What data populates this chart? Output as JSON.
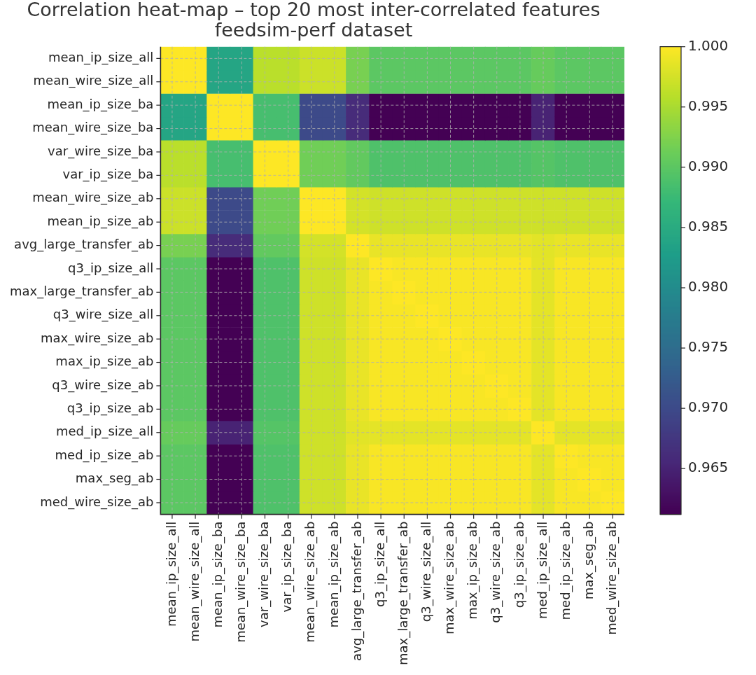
{
  "chart_data": {
    "type": "heatmap",
    "title": "Correlation heat-map – top 20 most inter-correlated features\nfeedsim-perf dataset",
    "categories": [
      "mean_ip_size_all",
      "mean_wire_size_all",
      "mean_ip_size_ba",
      "mean_wire_size_ba",
      "var_wire_size_ba",
      "var_ip_size_ba",
      "mean_wire_size_ab",
      "mean_ip_size_ab",
      "avg_large_transfer_ab",
      "q3_ip_size_all",
      "max_large_transfer_ab",
      "q3_wire_size_all",
      "max_wire_size_ab",
      "max_ip_size_ab",
      "q3_wire_size_ab",
      "q3_ip_size_ab",
      "med_ip_size_all",
      "med_ip_size_ab",
      "max_seg_ab",
      "med_wire_size_ab"
    ],
    "y_categories": [
      "mean_ip_size_all",
      "mean_wire_size_all",
      "mean_ip_size_ba",
      "mean_wire_size_ba",
      "var_wire_size_ba",
      "var_ip_size_ba",
      "mean_wire_size_ab",
      "mean_ip_size_ab",
      "avg_large_transfer_ab",
      "q3_ip_size_all",
      "max_large_transfer_ab",
      "q3_wire_size_all",
      "max_wire_size_ab",
      "max_ip_size_ab",
      "q3_wire_size_ab",
      "q3_ip_size_ab",
      "med_ip_size_all",
      "med_ip_size_ab",
      "max_seg_ab",
      "med_wire_size_ab"
    ],
    "cells": [
      [
        1,
        1,
        0.984,
        0.984,
        0.996,
        0.996,
        0.997,
        0.997,
        0.992,
        0.99,
        0.99,
        0.99,
        0.99,
        0.99,
        0.99,
        0.99,
        0.9908,
        0.99,
        0.99,
        0.99
      ],
      [
        1,
        1,
        0.984,
        0.984,
        0.996,
        0.996,
        0.997,
        0.997,
        0.992,
        0.99,
        0.99,
        0.99,
        0.99,
        0.99,
        0.99,
        0.99,
        0.9908,
        0.99,
        0.99,
        0.99
      ],
      [
        0.984,
        0.984,
        1,
        1,
        0.9884,
        0.9884,
        0.97,
        0.97,
        0.966,
        0.9612,
        0.9612,
        0.9612,
        0.9612,
        0.9612,
        0.9612,
        0.9612,
        0.965,
        0.9612,
        0.9612,
        0.9612
      ],
      [
        0.984,
        0.984,
        1,
        1,
        0.9884,
        0.9884,
        0.97,
        0.97,
        0.966,
        0.9612,
        0.9612,
        0.9612,
        0.9612,
        0.9612,
        0.9612,
        0.9612,
        0.965,
        0.9612,
        0.9612,
        0.9612
      ],
      [
        0.996,
        0.996,
        0.9884,
        0.9884,
        1,
        1,
        0.9915,
        0.9915,
        0.9905,
        0.989,
        0.989,
        0.989,
        0.989,
        0.989,
        0.989,
        0.989,
        0.9895,
        0.989,
        0.989,
        0.989
      ],
      [
        0.996,
        0.996,
        0.9884,
        0.9884,
        1,
        1,
        0.9915,
        0.9915,
        0.9905,
        0.989,
        0.989,
        0.989,
        0.989,
        0.989,
        0.989,
        0.989,
        0.9895,
        0.989,
        0.989,
        0.989
      ],
      [
        0.997,
        0.997,
        0.97,
        0.97,
        0.9915,
        0.9915,
        1,
        1,
        0.9975,
        0.9972,
        0.9972,
        0.9972,
        0.9972,
        0.9972,
        0.9972,
        0.9972,
        0.9972,
        0.9972,
        0.9972,
        0.9972
      ],
      [
        0.997,
        0.997,
        0.97,
        0.97,
        0.9915,
        0.9915,
        1,
        1,
        0.9975,
        0.9972,
        0.9972,
        0.9972,
        0.9972,
        0.9972,
        0.9972,
        0.9972,
        0.9972,
        0.9972,
        0.9972,
        0.9972
      ],
      [
        0.992,
        0.992,
        0.966,
        0.966,
        0.9905,
        0.9905,
        0.9975,
        0.9975,
        1,
        0.9988,
        0.9988,
        0.9988,
        0.9988,
        0.9988,
        0.9988,
        0.9988,
        0.9984,
        0.9988,
        0.9988,
        0.9988
      ],
      [
        0.99,
        0.99,
        0.9612,
        0.9612,
        0.989,
        0.989,
        0.9972,
        0.9972,
        0.9988,
        1,
        0.9997,
        0.9997,
        0.9997,
        0.9997,
        0.9997,
        0.9997,
        0.9985,
        0.9997,
        0.9997,
        0.9997
      ],
      [
        0.99,
        0.99,
        0.9612,
        0.9612,
        0.989,
        0.989,
        0.9972,
        0.9972,
        0.9988,
        0.9997,
        1,
        0.9997,
        0.9997,
        0.9997,
        0.9997,
        0.9997,
        0.9985,
        0.9997,
        0.9997,
        0.9997
      ],
      [
        0.99,
        0.99,
        0.9612,
        0.9612,
        0.989,
        0.989,
        0.9972,
        0.9972,
        0.9988,
        0.9997,
        0.9997,
        1,
        0.9997,
        0.9997,
        0.9997,
        0.9997,
        0.9985,
        0.9997,
        0.9997,
        0.9997
      ],
      [
        0.99,
        0.99,
        0.9612,
        0.9612,
        0.989,
        0.989,
        0.9972,
        0.9972,
        0.9988,
        0.9997,
        0.9997,
        0.9997,
        1,
        0.9997,
        0.9997,
        0.9997,
        0.9985,
        0.9997,
        0.9997,
        0.9997
      ],
      [
        0.99,
        0.99,
        0.9612,
        0.9612,
        0.989,
        0.989,
        0.9972,
        0.9972,
        0.9988,
        0.9997,
        0.9997,
        0.9997,
        0.9997,
        1,
        0.9997,
        0.9997,
        0.9985,
        0.9997,
        0.9997,
        0.9997
      ],
      [
        0.99,
        0.99,
        0.9612,
        0.9612,
        0.989,
        0.989,
        0.9972,
        0.9972,
        0.9988,
        0.9997,
        0.9997,
        0.9997,
        0.9997,
        0.9997,
        1,
        0.9997,
        0.9985,
        0.9997,
        0.9997,
        0.9997
      ],
      [
        0.99,
        0.99,
        0.9612,
        0.9612,
        0.989,
        0.989,
        0.9972,
        0.9972,
        0.9988,
        0.9997,
        0.9997,
        0.9997,
        0.9997,
        0.9997,
        0.9997,
        1,
        0.9985,
        0.9997,
        0.9997,
        0.9997
      ],
      [
        0.9908,
        0.9908,
        0.965,
        0.965,
        0.9895,
        0.9895,
        0.9972,
        0.9972,
        0.9984,
        0.9985,
        0.9985,
        0.9985,
        0.9985,
        0.9985,
        0.9985,
        0.9985,
        1,
        0.9985,
        0.9985,
        0.9985
      ],
      [
        0.99,
        0.99,
        0.9612,
        0.9612,
        0.989,
        0.989,
        0.9972,
        0.9972,
        0.9988,
        0.9997,
        0.9997,
        0.9997,
        0.9997,
        0.9997,
        0.9997,
        0.9997,
        0.9985,
        1,
        0.9997,
        0.9997
      ],
      [
        0.99,
        0.99,
        0.9612,
        0.9612,
        0.989,
        0.989,
        0.9972,
        0.9972,
        0.9988,
        0.9997,
        0.9997,
        0.9997,
        0.9997,
        0.9997,
        0.9997,
        0.9997,
        0.9985,
        0.9997,
        1,
        0.9997
      ],
      [
        0.99,
        0.99,
        0.9612,
        0.9612,
        0.989,
        0.989,
        0.9972,
        0.9972,
        0.9988,
        0.9997,
        0.9997,
        0.9997,
        0.9997,
        0.9997,
        0.9997,
        0.9997,
        0.9985,
        0.9997,
        0.9997,
        1
      ]
    ],
    "clim": [
      0.9612,
      1
    ],
    "cticks": [
      {
        "value": 0.965,
        "label": "0.965"
      },
      {
        "value": 0.97,
        "label": "0.970"
      },
      {
        "value": 0.975,
        "label": "0.975"
      },
      {
        "value": 0.98,
        "label": "0.980"
      },
      {
        "value": 0.985,
        "label": "0.985"
      },
      {
        "value": 0.99,
        "label": "0.990"
      },
      {
        "value": 0.995,
        "label": "0.995"
      },
      {
        "value": 1,
        "label": "1.000"
      }
    ],
    "grid": true
  }
}
